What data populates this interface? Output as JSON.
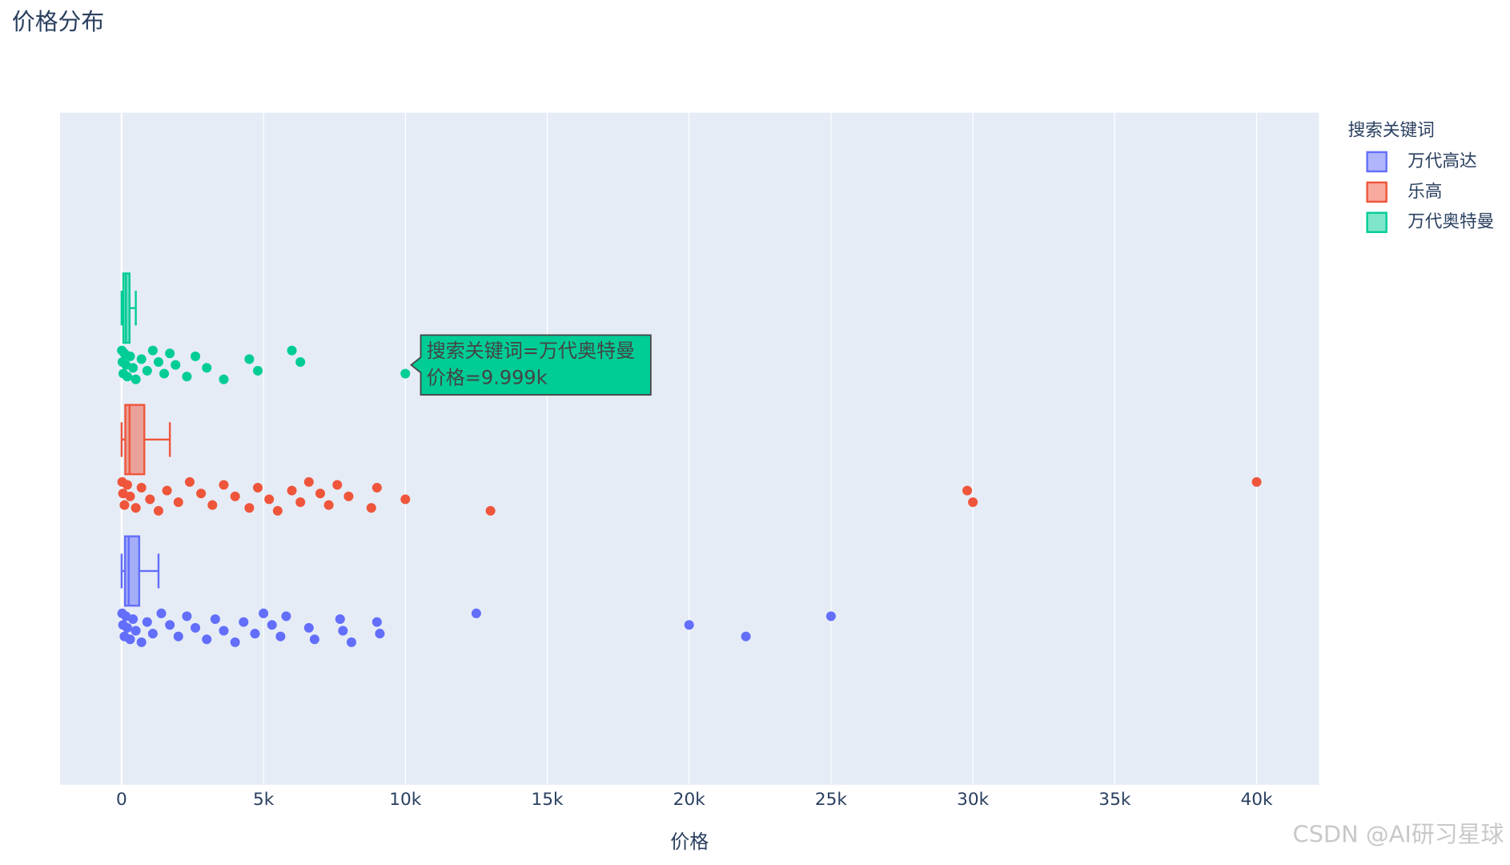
{
  "chart_data": {
    "type": "box",
    "title": "价格分布",
    "x_label": "价格",
    "legend_title": "搜索关键词",
    "xlim": [
      -2170,
      42200
    ],
    "xticks": [
      0,
      {
        "value": 5000,
        "label": "5k"
      },
      {
        "value": 10000,
        "label": "10k"
      },
      {
        "value": 15000,
        "label": "15k"
      },
      {
        "value": 20000,
        "label": "20k"
      },
      {
        "value": 25000,
        "label": "25k"
      },
      {
        "value": 30000,
        "label": "30k"
      },
      {
        "value": 35000,
        "label": "35k"
      },
      {
        "value": 40000,
        "label": "40k"
      }
    ],
    "grid": true,
    "legend": "right",
    "series": [
      {
        "name": "万代高达",
        "color": "#636efa",
        "lowerfence": 0,
        "q1": 120,
        "median": 250,
        "q3": 620,
        "upperfence": 1300,
        "points": [
          20,
          50,
          100,
          150,
          200,
          300,
          400,
          500,
          700,
          900,
          1100,
          1400,
          1700,
          2000,
          2300,
          2600,
          3000,
          3300,
          3600,
          4000,
          4300,
          4700,
          5000,
          5300,
          5600,
          5800,
          6600,
          6800,
          7700,
          7800,
          8100,
          9000,
          9100,
          12500,
          20000,
          22000,
          25000
        ]
      },
      {
        "name": "乐高",
        "color": "#EF553B",
        "lowerfence": 0,
        "q1": 130,
        "median": 280,
        "q3": 800,
        "upperfence": 1700,
        "points": [
          20,
          50,
          100,
          200,
          300,
          500,
          700,
          1000,
          1300,
          1600,
          2000,
          2400,
          2800,
          3200,
          3600,
          4000,
          4500,
          4800,
          5200,
          5500,
          6000,
          6300,
          6600,
          7000,
          7300,
          7600,
          8000,
          8800,
          9000,
          10000,
          13000,
          29800,
          30000,
          40000
        ]
      },
      {
        "name": "万代奥特曼",
        "color": "#00cc96",
        "lowerfence": 0,
        "q1": 60,
        "median": 150,
        "q3": 280,
        "upperfence": 500,
        "points": [
          10,
          30,
          60,
          100,
          150,
          200,
          300,
          400,
          500,
          700,
          900,
          1100,
          1300,
          1500,
          1700,
          1900,
          2300,
          2600,
          3000,
          3600,
          4500,
          4800,
          6000,
          6300,
          9999
        ]
      }
    ],
    "hover": {
      "series": 2,
      "point": 24,
      "lines": [
        "搜索关键词=万代奥特曼",
        "价格=9.999k"
      ]
    },
    "watermark": "CSDN @AI研习星球"
  }
}
